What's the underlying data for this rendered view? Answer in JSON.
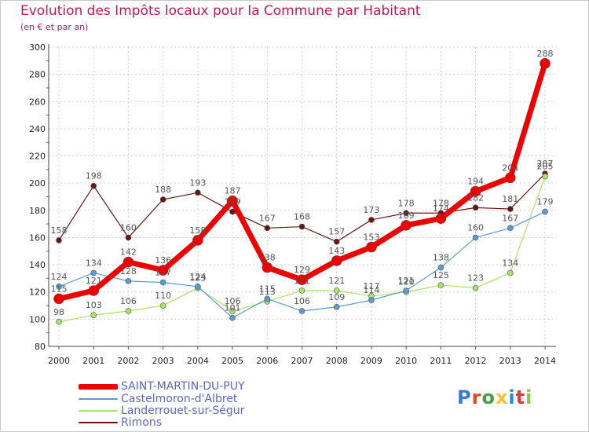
{
  "title": "Evolution des Impôts locaux pour la Commune par Habitant",
  "subtitle": "(en € et par an)",
  "logo": "Proxiti",
  "chart_data": {
    "type": "line",
    "x": [
      2000,
      2001,
      2002,
      2003,
      2004,
      2005,
      2006,
      2007,
      2008,
      2009,
      2010,
      2011,
      2012,
      2013,
      2014
    ],
    "ylim": [
      80,
      300
    ],
    "yticks": [
      80,
      100,
      120,
      140,
      160,
      180,
      200,
      220,
      240,
      260,
      280,
      300
    ],
    "grid": true,
    "legend_position": "bottom-left",
    "xlabel": "",
    "ylabel": "",
    "series": [
      {
        "name": "Rimons",
        "color": "#6b1414",
        "width": 1.2,
        "marker": 3.5,
        "values": [
          158,
          198,
          160,
          188,
          193,
          179,
          167,
          168,
          157,
          173,
          178,
          178,
          182,
          181,
          207
        ],
        "labels": [
          158,
          198,
          160,
          188,
          193,
          179,
          167,
          168,
          157,
          173,
          178,
          178,
          182,
          181,
          207
        ]
      },
      {
        "name": "Landerrouet-sur-Ségur",
        "color": "#a8e26a",
        "width": 1.2,
        "marker": 3.5,
        "values": [
          98,
          103,
          106,
          110,
          123,
          106,
          113,
          121,
          121,
          117,
          120,
          125,
          123,
          134,
          205
        ],
        "labels": [
          98,
          103,
          106,
          110,
          123,
          106,
          113,
          121,
          121,
          117,
          120,
          125,
          123,
          134,
          205
        ]
      },
      {
        "name": "Castelmoron-d'Albret",
        "color": "#5b9bd5",
        "width": 1.2,
        "marker": 3.5,
        "values": [
          124,
          134,
          128,
          127,
          124,
          101,
          115,
          106,
          109,
          114,
          121,
          138,
          160,
          167,
          179
        ],
        "labels": [
          124,
          134,
          128,
          127,
          124,
          101,
          115,
          106,
          109,
          114,
          121,
          138,
          160,
          167,
          179
        ]
      },
      {
        "name": "SAINT-MARTIN-DU-PUY",
        "color": "#ee0000",
        "width": 7,
        "marker": 6.5,
        "values": [
          115,
          121,
          142,
          136,
          158,
          187,
          138,
          129,
          143,
          153,
          169,
          174,
          194,
          204,
          288
        ],
        "labels": [
          115,
          121,
          142,
          136,
          158,
          187,
          138,
          129,
          143,
          153,
          169,
          174,
          194,
          204,
          288
        ]
      }
    ],
    "legend": [
      {
        "name": "SAINT-MARTIN-DU-PUY",
        "color": "#ee0000"
      },
      {
        "name": "Castelmoron-d'Albret",
        "color": "#5b9bd5"
      },
      {
        "name": "Landerrouet-sur-Ségur",
        "color": "#a8e26a"
      },
      {
        "name": "Rimons",
        "color": "#6b1414"
      }
    ]
  }
}
